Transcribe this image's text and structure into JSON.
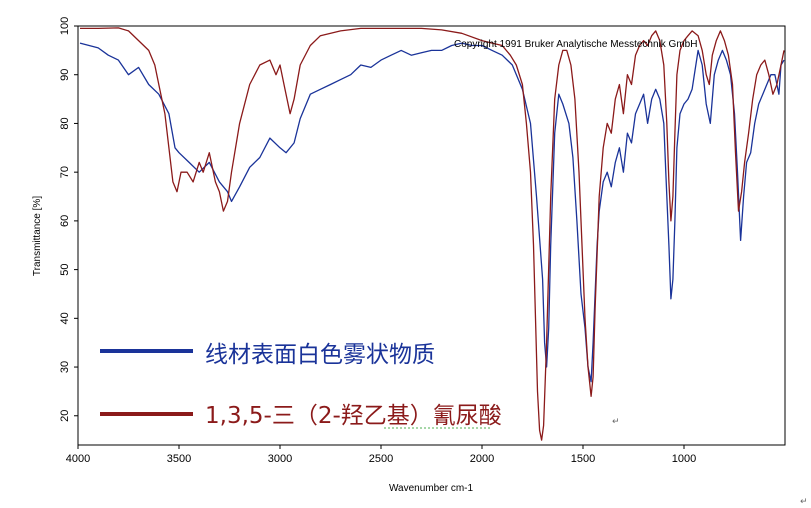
{
  "chart_data": {
    "type": "line",
    "xlabel": "Wavenumber cm-1",
    "ylabel": "Transmittance [%]",
    "xlim": [
      4000,
      500
    ],
    "ylim": [
      14,
      100
    ],
    "x_ticks": [
      4000,
      3500,
      3000,
      2500,
      2000,
      1500,
      1000
    ],
    "y_ticks": [
      20,
      30,
      40,
      50,
      60,
      70,
      80,
      90,
      100
    ],
    "annotation": "Copyright 1991 Bruker Analytische Messtechnik GmbH",
    "grid": false,
    "series": [
      {
        "name": "线材表面白色雾状物质",
        "color": "#1a3399",
        "points": [
          [
            3990,
            96.5
          ],
          [
            3900,
            95.5
          ],
          [
            3850,
            94
          ],
          [
            3800,
            93
          ],
          [
            3750,
            90
          ],
          [
            3700,
            91.5
          ],
          [
            3650,
            88
          ],
          [
            3600,
            86
          ],
          [
            3550,
            82
          ],
          [
            3520,
            75
          ],
          [
            3500,
            74
          ],
          [
            3450,
            72
          ],
          [
            3400,
            70
          ],
          [
            3350,
            72
          ],
          [
            3300,
            68
          ],
          [
            3260,
            66
          ],
          [
            3240,
            64
          ],
          [
            3200,
            67
          ],
          [
            3150,
            71
          ],
          [
            3100,
            73
          ],
          [
            3050,
            77
          ],
          [
            3000,
            75
          ],
          [
            2970,
            74
          ],
          [
            2930,
            76
          ],
          [
            2900,
            81
          ],
          [
            2850,
            86
          ],
          [
            2800,
            87
          ],
          [
            2750,
            88
          ],
          [
            2700,
            89
          ],
          [
            2650,
            90
          ],
          [
            2600,
            92
          ],
          [
            2550,
            91.5
          ],
          [
            2500,
            93
          ],
          [
            2450,
            94
          ],
          [
            2400,
            95
          ],
          [
            2350,
            94
          ],
          [
            2300,
            94.5
          ],
          [
            2250,
            95
          ],
          [
            2200,
            95
          ],
          [
            2150,
            96
          ],
          [
            2100,
            96.5
          ],
          [
            2050,
            96
          ],
          [
            2000,
            96
          ],
          [
            1950,
            95
          ],
          [
            1900,
            94
          ],
          [
            1850,
            92
          ],
          [
            1800,
            87
          ],
          [
            1760,
            80
          ],
          [
            1730,
            65
          ],
          [
            1700,
            48
          ],
          [
            1690,
            35
          ],
          [
            1680,
            30
          ],
          [
            1670,
            38
          ],
          [
            1660,
            55
          ],
          [
            1640,
            78
          ],
          [
            1620,
            86
          ],
          [
            1600,
            84
          ],
          [
            1570,
            80
          ],
          [
            1550,
            73
          ],
          [
            1530,
            60
          ],
          [
            1510,
            45
          ],
          [
            1490,
            38
          ],
          [
            1475,
            30
          ],
          [
            1460,
            27
          ],
          [
            1450,
            35
          ],
          [
            1430,
            55
          ],
          [
            1420,
            62
          ],
          [
            1400,
            68
          ],
          [
            1380,
            70
          ],
          [
            1360,
            67
          ],
          [
            1340,
            72
          ],
          [
            1320,
            75
          ],
          [
            1300,
            70
          ],
          [
            1280,
            78
          ],
          [
            1260,
            76
          ],
          [
            1240,
            82
          ],
          [
            1220,
            84
          ],
          [
            1200,
            86
          ],
          [
            1180,
            80
          ],
          [
            1160,
            85
          ],
          [
            1140,
            87
          ],
          [
            1120,
            85
          ],
          [
            1100,
            80
          ],
          [
            1090,
            70
          ],
          [
            1075,
            55
          ],
          [
            1065,
            44
          ],
          [
            1055,
            48
          ],
          [
            1045,
            60
          ],
          [
            1035,
            75
          ],
          [
            1020,
            82
          ],
          [
            1000,
            84
          ],
          [
            980,
            85
          ],
          [
            960,
            87
          ],
          [
            930,
            95
          ],
          [
            910,
            92
          ],
          [
            890,
            84
          ],
          [
            870,
            80
          ],
          [
            850,
            90
          ],
          [
            830,
            93
          ],
          [
            810,
            95
          ],
          [
            790,
            93
          ],
          [
            770,
            90
          ],
          [
            750,
            82
          ],
          [
            735,
            70
          ],
          [
            720,
            56
          ],
          [
            705,
            65
          ],
          [
            690,
            72
          ],
          [
            670,
            74
          ],
          [
            650,
            80
          ],
          [
            630,
            84
          ],
          [
            610,
            86
          ],
          [
            590,
            88
          ],
          [
            570,
            90
          ],
          [
            550,
            90
          ],
          [
            530,
            86
          ],
          [
            520,
            92
          ],
          [
            505,
            93
          ]
        ]
      },
      {
        "name": "1,3,5-三（2-羟乙基）氰尿酸",
        "color": "#8b1a1a",
        "points": [
          [
            3990,
            99.5
          ],
          [
            3900,
            99.5
          ],
          [
            3800,
            99.6
          ],
          [
            3750,
            99
          ],
          [
            3700,
            97
          ],
          [
            3650,
            95
          ],
          [
            3620,
            92
          ],
          [
            3600,
            88
          ],
          [
            3570,
            82
          ],
          [
            3550,
            75
          ],
          [
            3530,
            68
          ],
          [
            3510,
            66
          ],
          [
            3490,
            70
          ],
          [
            3460,
            70
          ],
          [
            3430,
            68
          ],
          [
            3400,
            72
          ],
          [
            3380,
            70
          ],
          [
            3350,
            74
          ],
          [
            3320,
            68
          ],
          [
            3300,
            66
          ],
          [
            3280,
            62
          ],
          [
            3260,
            64
          ],
          [
            3240,
            70
          ],
          [
            3200,
            80
          ],
          [
            3150,
            88
          ],
          [
            3100,
            92
          ],
          [
            3050,
            93
          ],
          [
            3020,
            90
          ],
          [
            3000,
            92
          ],
          [
            2980,
            88
          ],
          [
            2950,
            82
          ],
          [
            2930,
            85
          ],
          [
            2900,
            92
          ],
          [
            2850,
            96
          ],
          [
            2800,
            98
          ],
          [
            2700,
            99
          ],
          [
            2600,
            99.5
          ],
          [
            2500,
            99.5
          ],
          [
            2400,
            99.5
          ],
          [
            2300,
            99.5
          ],
          [
            2200,
            99.2
          ],
          [
            2100,
            98.5
          ],
          [
            2000,
            97
          ],
          [
            1950,
            96.5
          ],
          [
            1900,
            96
          ],
          [
            1860,
            94
          ],
          [
            1830,
            92
          ],
          [
            1800,
            88
          ],
          [
            1780,
            80
          ],
          [
            1760,
            70
          ],
          [
            1745,
            55
          ],
          [
            1735,
            40
          ],
          [
            1725,
            25
          ],
          [
            1715,
            17
          ],
          [
            1705,
            15
          ],
          [
            1695,
            18
          ],
          [
            1680,
            35
          ],
          [
            1660,
            65
          ],
          [
            1640,
            85
          ],
          [
            1620,
            92
          ],
          [
            1600,
            95
          ],
          [
            1580,
            95
          ],
          [
            1560,
            92
          ],
          [
            1540,
            85
          ],
          [
            1520,
            70
          ],
          [
            1505,
            55
          ],
          [
            1490,
            40
          ],
          [
            1475,
            30
          ],
          [
            1460,
            24
          ],
          [
            1450,
            28
          ],
          [
            1440,
            42
          ],
          [
            1420,
            65
          ],
          [
            1400,
            75
          ],
          [
            1380,
            80
          ],
          [
            1360,
            78
          ],
          [
            1340,
            85
          ],
          [
            1320,
            88
          ],
          [
            1300,
            82
          ],
          [
            1280,
            90
          ],
          [
            1260,
            88
          ],
          [
            1240,
            94
          ],
          [
            1220,
            96
          ],
          [
            1200,
            97
          ],
          [
            1180,
            96
          ],
          [
            1160,
            98
          ],
          [
            1140,
            99
          ],
          [
            1120,
            97
          ],
          [
            1100,
            92
          ],
          [
            1085,
            80
          ],
          [
            1075,
            68
          ],
          [
            1065,
            60
          ],
          [
            1055,
            65
          ],
          [
            1045,
            78
          ],
          [
            1035,
            90
          ],
          [
            1020,
            95
          ],
          [
            1000,
            97
          ],
          [
            980,
            98
          ],
          [
            960,
            99
          ],
          [
            930,
            98
          ],
          [
            910,
            95
          ],
          [
            890,
            90
          ],
          [
            875,
            88
          ],
          [
            860,
            94
          ],
          [
            840,
            97
          ],
          [
            820,
            99
          ],
          [
            800,
            97
          ],
          [
            780,
            94
          ],
          [
            760,
            88
          ],
          [
            745,
            74
          ],
          [
            730,
            62
          ],
          [
            715,
            66
          ],
          [
            700,
            72
          ],
          [
            680,
            78
          ],
          [
            660,
            85
          ],
          [
            640,
            90
          ],
          [
            620,
            92
          ],
          [
            600,
            93
          ],
          [
            580,
            90
          ],
          [
            560,
            86
          ],
          [
            540,
            88
          ],
          [
            520,
            92
          ],
          [
            505,
            95
          ]
        ]
      }
    ],
    "legend": {
      "placement": "bottom-left",
      "items": [
        {
          "label": "线材表面白色雾状物质",
          "color": "#1a3399"
        },
        {
          "label": "1,3,5-三（2-羟乙基）氰尿酸",
          "color": "#8b1a1a"
        }
      ]
    }
  },
  "ui": {
    "return_mark": "↵"
  }
}
